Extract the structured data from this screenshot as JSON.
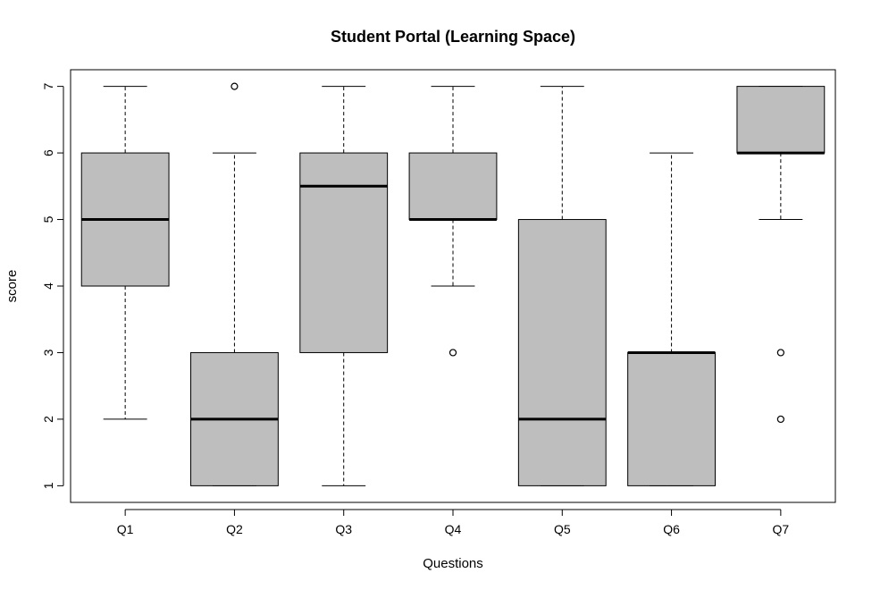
{
  "chart_data": {
    "type": "boxplot",
    "title": "Student Portal (Learning Space)",
    "xlabel": "Questions",
    "ylabel": "score",
    "ylim": [
      0.75,
      7.25
    ],
    "yticks": [
      1,
      2,
      3,
      4,
      5,
      6,
      7
    ],
    "categories": [
      "Q1",
      "Q2",
      "Q3",
      "Q4",
      "Q5",
      "Q6",
      "Q7"
    ],
    "box_color": "#bebebe",
    "grid": false,
    "boxes": [
      {
        "label": "Q1",
        "whisker_low": 2,
        "q1": 4,
        "median": 5,
        "q3": 6,
        "whisker_high": 7,
        "outliers": []
      },
      {
        "label": "Q2",
        "whisker_low": 1,
        "q1": 1,
        "median": 2,
        "q3": 3,
        "whisker_high": 6,
        "outliers": [
          7
        ]
      },
      {
        "label": "Q3",
        "whisker_low": 1,
        "q1": 3,
        "median": 5.5,
        "q3": 6,
        "whisker_high": 7,
        "outliers": []
      },
      {
        "label": "Q4",
        "whisker_low": 4,
        "q1": 5,
        "median": 5,
        "q3": 6,
        "whisker_high": 7,
        "outliers": [
          3
        ]
      },
      {
        "label": "Q5",
        "whisker_low": 1,
        "q1": 1,
        "median": 2,
        "q3": 5,
        "whisker_high": 7,
        "outliers": []
      },
      {
        "label": "Q6",
        "whisker_low": 1,
        "q1": 1,
        "median": 3,
        "q3": 3,
        "whisker_high": 6,
        "outliers": []
      },
      {
        "label": "Q7",
        "whisker_low": 5,
        "q1": 6,
        "median": 6,
        "q3": 7,
        "whisker_high": 7,
        "outliers": [
          3,
          2
        ]
      }
    ]
  }
}
